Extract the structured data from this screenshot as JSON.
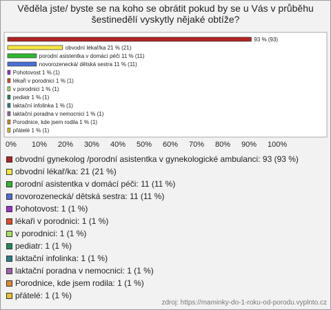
{
  "chart_data": {
    "type": "hbar",
    "title": "Věděla jste/ byste se na koho se obrátit pokud by se u Vás v průběhu šestinedělí vyskytly nějaké obtíže?",
    "categories": [
      "obvodní gynekolog /porodní asistentka v gynekologické ambulanci",
      "obvodní lékař/ka",
      "porodní asistentka v domácí péči",
      "novorozenecká/ dětská sestra",
      "Pohotovost",
      "lékaři v porodnici",
      "v porodnici",
      "pediatr",
      "laktační infolinka",
      "laktační poradna v nemocnici",
      "Porodnice, kde jsem rodila",
      "přátelé"
    ],
    "values": [
      93,
      21,
      11,
      11,
      1,
      1,
      1,
      1,
      1,
      1,
      1,
      1
    ],
    "value_labels": [
      "93 % (93)",
      "obvodní lékař/ka 21 % (21)",
      "porodní asistentka v domácí péči 11 % (11)",
      "novorozenecká/ dětská sestra 11 % (11)",
      "Pohotovost 1 % (1)",
      "lékaři v porodnici 1 % (1)",
      "v porodnici 1 % (1)",
      "pediatr 1 % (1)",
      "laktační infolinka 1 % (1)",
      "laktační poradna v nemocnici 1 % (1)",
      "Porodnice, kde jsem rodila 1 % (1)",
      "přátelé 1 % (1)"
    ],
    "legend_labels": [
      "obvodní gynekolog /porodní asistentka v gynekologické ambulanci: 93 (93 %)",
      "obvodní lékař/ka: 21 (21 %)",
      "porodní asistentka v domácí péči: 11 (11 %)",
      "novorozenecká/ dětská sestra: 11 (11 %)",
      "Pohotovost: 1 (1 %)",
      "lékaři v porodnici: 1 (1 %)",
      "v porodnici: 1 (1 %)",
      "pediatr: 1 (1 %)",
      "laktační infolinka: 1 (1 %)",
      "laktační poradna v nemocnici: 1 (1 %)",
      "Porodnice, kde jsem rodila: 1 (1 %)",
      "přátelé: 1 (1 %)"
    ],
    "colors": [
      "#b22222",
      "#f5e642",
      "#2eb82e",
      "#4a6fd8",
      "#9b30d0",
      "#e04a2a",
      "#a8e060",
      "#1e8a5a",
      "#2a7f8a",
      "#a060b0",
      "#e08a30",
      "#e8c030"
    ],
    "xlim": [
      0,
      100
    ],
    "xticks": [
      {
        "value": 0,
        "label": "0%"
      },
      {
        "value": 10,
        "label": "10%"
      },
      {
        "value": 20,
        "label": "20%"
      },
      {
        "value": 30,
        "label": "30%"
      },
      {
        "value": 40,
        "label": "40%"
      },
      {
        "value": 50,
        "label": "50%"
      },
      {
        "value": 60,
        "label": "60%"
      },
      {
        "value": 70,
        "label": "70%"
      },
      {
        "value": 80,
        "label": "80%"
      },
      {
        "value": 90,
        "label": "90%"
      },
      {
        "value": 100,
        "label": "100%"
      }
    ],
    "source": "zdroj: https://maminky-do-1-roku-od-porodu.vyplnto.cz"
  }
}
